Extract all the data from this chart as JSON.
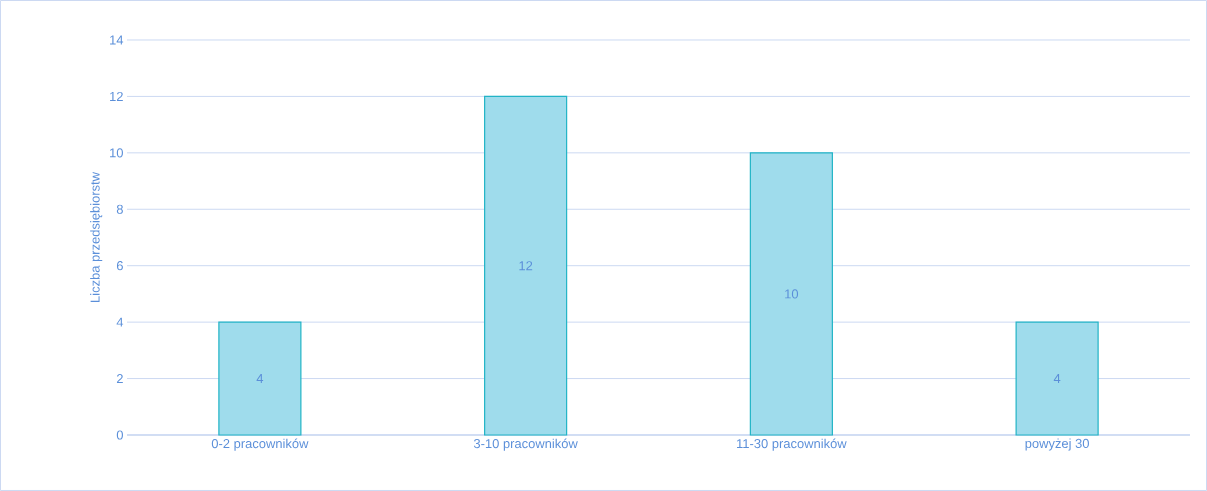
{
  "chart_data": {
    "type": "bar",
    "ylabel": "Liczba przedsiębiorstw",
    "categories": [
      "0-2 pracowników",
      "3-10 pracowników",
      "11-30 pracowników",
      "powyżej 30"
    ],
    "values": [
      4,
      12,
      10,
      4
    ],
    "color": "#9fdcec",
    "ylim": [
      0,
      14
    ],
    "yticks": [
      0,
      2,
      4,
      6,
      8,
      10,
      12,
      14
    ],
    "grid": "y",
    "data_labels": true
  }
}
